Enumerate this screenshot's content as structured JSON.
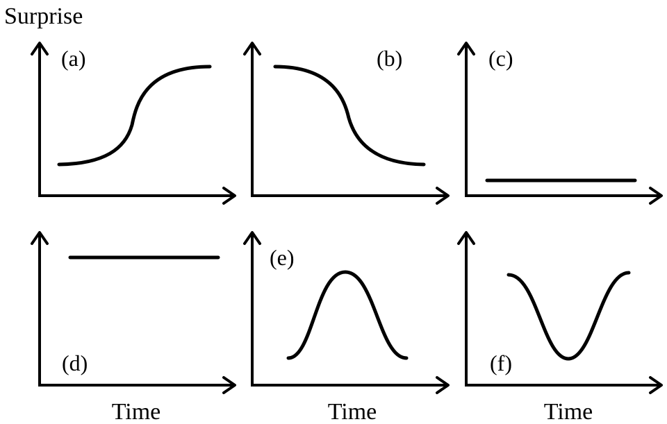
{
  "y_axis_label": "Surprise",
  "x_axis_label": "Time",
  "panels": [
    {
      "label": "(a)",
      "shape": "rising sigmoid"
    },
    {
      "label": "(b)",
      "shape": "falling sigmoid"
    },
    {
      "label": "(c)",
      "shape": "constant low"
    },
    {
      "label": "(d)",
      "shape": "constant high"
    },
    {
      "label": "(e)",
      "shape": "peak"
    },
    {
      "label": "(f)",
      "shape": "trough"
    }
  ],
  "colors": {
    "ink": "#000000",
    "background": "#ffffff"
  }
}
